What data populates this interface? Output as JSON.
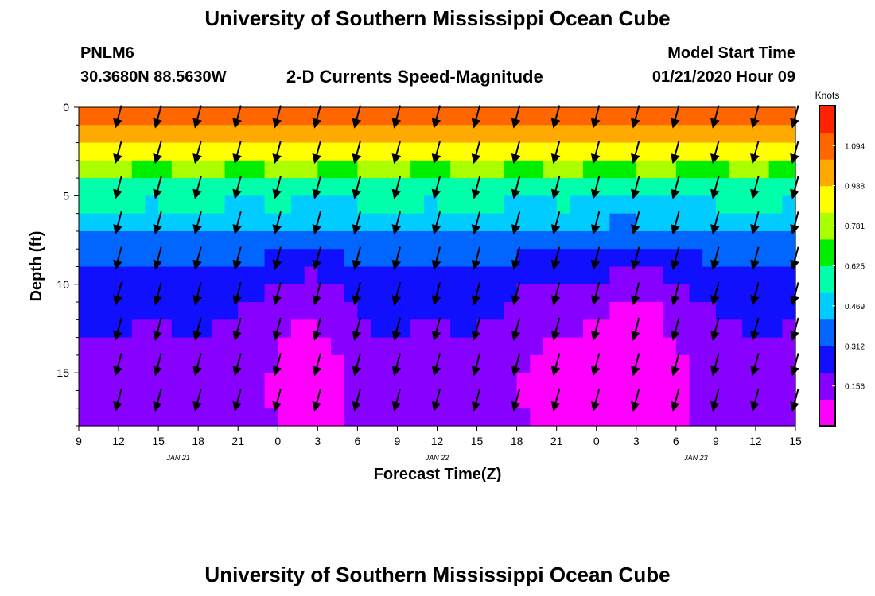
{
  "header": {
    "title": "University of Southern Mississippi Ocean Cube",
    "station": "PNLM6",
    "coords": "30.3680N 88.5630W",
    "subtitle": "2-D Currents Speed-Magnitude",
    "model_start_label": "Model Start Time",
    "model_start_value": "01/21/2020 Hour 09"
  },
  "footer": {
    "title": "University of Southern Mississippi Ocean Cube"
  },
  "chart_data": {
    "type": "heatmap",
    "title": "2-D Currents Speed-Magnitude",
    "xlabel": "Forecast Time(Z)",
    "ylabel": "Depth (ft)",
    "x_hours": [
      0,
      54
    ],
    "x_tick_labels": [
      "9",
      "12",
      "15",
      "18",
      "21",
      "0",
      "3",
      "6",
      "9",
      "12",
      "15",
      "18",
      "21",
      "0",
      "3",
      "6",
      "9",
      "12",
      "15"
    ],
    "date_labels": [
      {
        "label": "JAN 21",
        "x_hour": 7.5
      },
      {
        "label": "JAN 22",
        "x_hour": 27
      },
      {
        "label": "JAN 23",
        "x_hour": 46.5
      }
    ],
    "depth_range": [
      0,
      18
    ],
    "y_ticks": [
      0,
      5,
      10,
      15
    ],
    "colorbar": {
      "label": "Knots",
      "range": [
        0,
        1.25
      ],
      "ticks": [
        0.156,
        0.312,
        0.469,
        0.625,
        0.781,
        0.938,
        1.094
      ],
      "colors": [
        "#ff00ff",
        "#8800ff",
        "#1010ff",
        "#0066ff",
        "#00ccff",
        "#00ffaa",
        "#00ee00",
        "#aaff00",
        "#ffff00",
        "#ffaa00",
        "#ff6600",
        "#ff2200"
      ]
    },
    "depth_profile": [
      {
        "depth": 0,
        "speed": 1.18
      },
      {
        "depth": 1,
        "speed": 1.04
      },
      {
        "depth": 2,
        "speed": 0.9
      },
      {
        "depth": 3,
        "speed": 0.8
      },
      {
        "depth": 4,
        "speed": 0.66
      },
      {
        "depth": 5,
        "speed": 0.57
      },
      {
        "depth": 6,
        "speed": 0.48
      },
      {
        "depth": 7,
        "speed": 0.42
      },
      {
        "depth": 8,
        "speed": 0.37
      },
      {
        "depth": 9,
        "speed": 0.32
      },
      {
        "depth": 10,
        "speed": 0.28
      },
      {
        "depth": 11,
        "speed": 0.24
      },
      {
        "depth": 12,
        "speed": 0.22
      },
      {
        "depth": 13,
        "speed": 0.2
      },
      {
        "depth": 14,
        "speed": 0.18
      },
      {
        "depth": 15,
        "speed": 0.17
      },
      {
        "depth": 16,
        "speed": 0.16
      },
      {
        "depth": 17,
        "speed": 0.17
      },
      {
        "depth": 18,
        "speed": 0.18
      }
    ],
    "slack_periods": [
      {
        "center_hour": 17,
        "width_hours": 3.2,
        "drop": 0.9
      },
      {
        "center_hour": 36,
        "width_hours": 3.6,
        "drop": 0.65
      },
      {
        "center_hour": 42.5,
        "width_hours": 4.0,
        "drop": 1.0
      }
    ],
    "vector_times_hours": [
      3,
      6,
      9,
      12,
      15,
      18,
      21,
      24,
      27,
      30,
      33,
      36,
      39,
      42,
      45,
      48,
      51,
      54
    ],
    "vector_depths_ft": [
      0.5,
      2.5,
      4.5,
      6.5,
      8.5,
      10.5,
      12.5,
      14.5,
      16.5
    ],
    "vector_direction_deg": 195
  }
}
